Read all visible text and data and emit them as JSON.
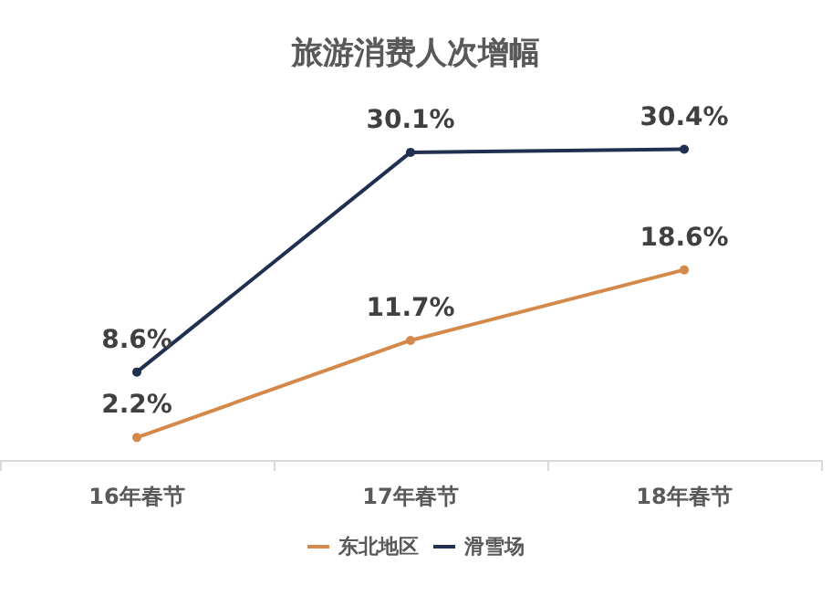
{
  "chart_data": {
    "type": "line",
    "title": "旅游消费人次增幅",
    "categories": [
      "16年春节",
      "17年春节",
      "18年春节"
    ],
    "series": [
      {
        "name": "东北地区",
        "color": "#d4894a",
        "values": [
          2.2,
          11.7,
          18.6
        ],
        "value_labels": [
          "2.2%",
          "11.7%",
          "18.6%"
        ]
      },
      {
        "name": "滑雪场",
        "color": "#1f3050",
        "values": [
          8.6,
          30.1,
          30.4
        ],
        "value_labels": [
          "8.6%",
          "30.1%",
          "30.4%"
        ]
      }
    ],
    "marker": "circle",
    "grid": false,
    "legend": "bottom",
    "line_style": "solid"
  }
}
